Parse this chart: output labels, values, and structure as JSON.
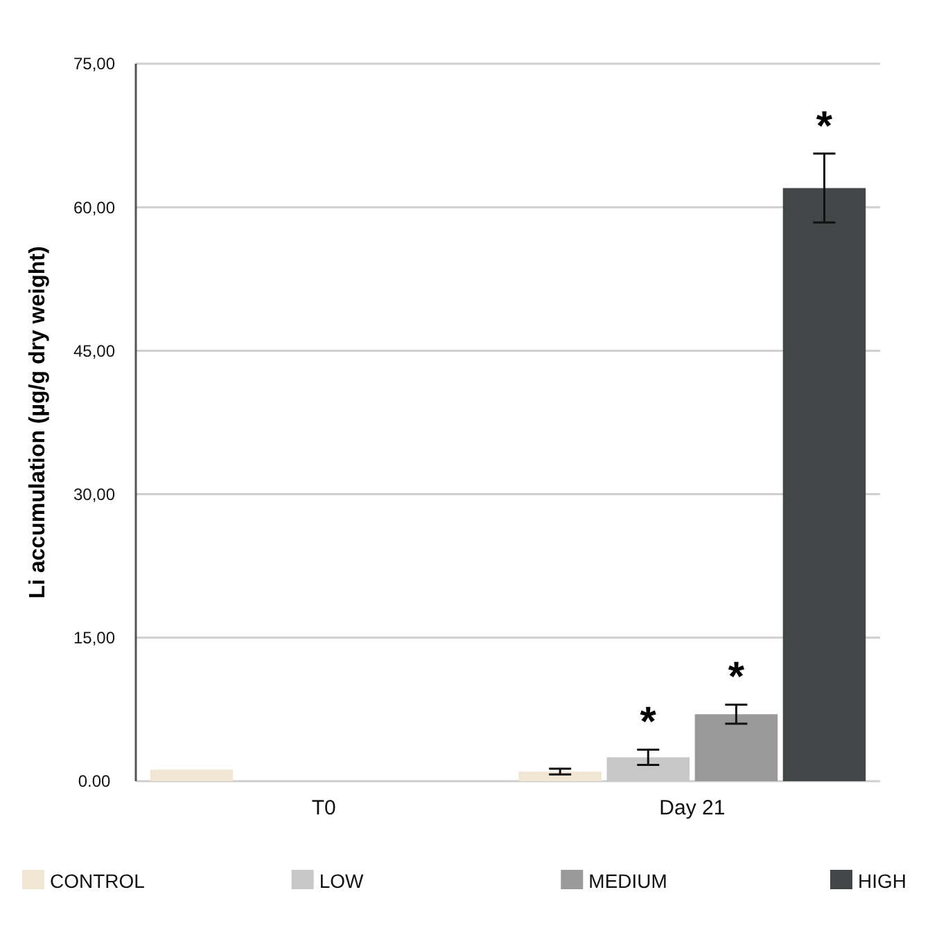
{
  "chart_data": {
    "type": "bar",
    "ylabel": "Li accumulation (µg/g dry weight)",
    "categories": [
      "T0",
      "Day 21"
    ],
    "series": [
      {
        "name": "CONTROL",
        "color": "#f0e6d2",
        "values": [
          1.2,
          1.0
        ],
        "errors": [
          null,
          0.3
        ]
      },
      {
        "name": "LOW",
        "color": "#c8c8c8",
        "values": [
          null,
          2.5
        ],
        "errors": [
          null,
          0.8
        ]
      },
      {
        "name": "MEDIUM",
        "color": "#999999",
        "values": [
          null,
          7.0
        ],
        "errors": [
          null,
          1.0
        ]
      },
      {
        "name": "HIGH",
        "color": "#434646",
        "values": [
          null,
          62.0
        ],
        "errors": [
          null,
          3.6
        ]
      }
    ],
    "ylim": [
      0,
      75
    ],
    "yticks": [
      {
        "value": 0,
        "label": "0.00"
      },
      {
        "value": 15,
        "label": "15,00"
      },
      {
        "value": 30,
        "label": "30,00"
      },
      {
        "value": 45,
        "label": "45,00"
      },
      {
        "value": 60,
        "label": "60,00"
      },
      {
        "value": 75,
        "label": "75,00"
      }
    ],
    "grid": "y",
    "legend": "bottom",
    "annotations": [
      "*",
      "*",
      "*"
    ]
  }
}
